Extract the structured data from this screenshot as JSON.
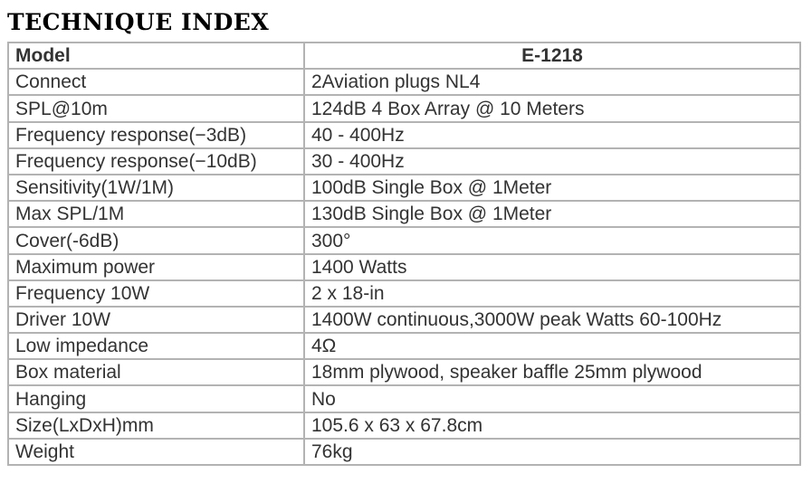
{
  "title": "TECHNIQUE INDEX",
  "header": {
    "label": "Model",
    "value": "E-1218"
  },
  "rows": [
    {
      "label": "Connect",
      "value": "2Aviation plugs NL4"
    },
    {
      "label": "SPL@10m",
      "value": "124dB 4 Box Array @ 10 Meters"
    },
    {
      "label": "Frequency response(−3dB)",
      "value": "40 - 400Hz"
    },
    {
      "label": "Frequency response(−10dB)",
      "value": "30 - 400Hz"
    },
    {
      "label": "Sensitivity(1W/1M)",
      "value": "100dB Single Box @ 1Meter"
    },
    {
      "label": "Max SPL/1M",
      "value": "130dB Single Box @ 1Meter"
    },
    {
      "label": "Cover(-6dB)",
      "value": "300°"
    },
    {
      "label": "Maximum power",
      "value": "1400 Watts"
    },
    {
      "label": "Frequency 10W",
      "value": "2 x 18-in"
    },
    {
      "label": "Driver 10W",
      "value": "1400W continuous,3000W peak Watts 60-100Hz"
    },
    {
      "label": "Low impedance",
      "value": "4Ω"
    },
    {
      "label": "Box material",
      "value": "18mm plywood, speaker baffle 25mm plywood"
    },
    {
      "label": "Hanging",
      "value": "No"
    },
    {
      "label": "Size(LxDxH)mm",
      "value": "105.6 x 63 x 67.8cm"
    },
    {
      "label": "Weight",
      "value": "76kg"
    }
  ]
}
